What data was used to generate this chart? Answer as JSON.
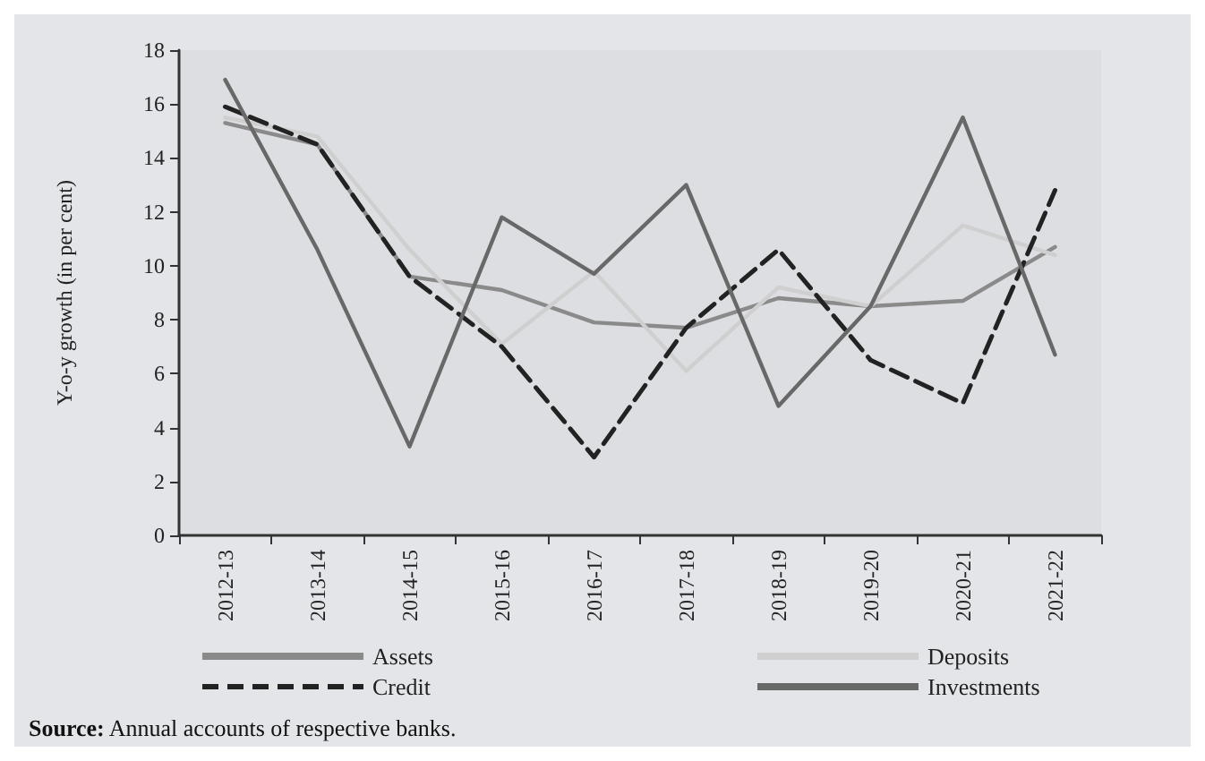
{
  "chart_data": {
    "type": "line",
    "ylabel": "Y-o-y growth (in per cent)",
    "categories": [
      "2012-13",
      "2013-14",
      "2014-15",
      "2015-16",
      "2016-17",
      "2017-18",
      "2018-19",
      "2019-20",
      "2020-21",
      "2021-22"
    ],
    "series": [
      {
        "name": "Assets",
        "color": "#8a8a8a",
        "line_style": "solid",
        "values": [
          15.3,
          14.5,
          9.6,
          9.1,
          7.9,
          7.7,
          8.8,
          8.5,
          8.7,
          10.7
        ]
      },
      {
        "name": "Deposits",
        "color": "#cfcfcf",
        "line_style": "solid",
        "values": [
          15.5,
          14.8,
          10.6,
          7.1,
          9.8,
          6.1,
          9.2,
          8.5,
          11.5,
          10.4
        ]
      },
      {
        "name": "Credit",
        "color": "#222222",
        "line_style": "dashed",
        "values": [
          15.9,
          14.5,
          9.6,
          7.0,
          2.9,
          7.7,
          10.6,
          6.5,
          4.9,
          12.8
        ]
      },
      {
        "name": "Investments",
        "color": "#686868",
        "line_style": "solid",
        "values": [
          16.9,
          10.6,
          3.3,
          11.8,
          9.7,
          13.0,
          4.8,
          8.5,
          15.5,
          6.7
        ]
      }
    ],
    "ylim": [
      0,
      18
    ],
    "yticks": [
      0,
      2,
      4,
      6,
      8,
      10,
      12,
      14,
      16,
      18
    ],
    "grid": false,
    "marker": "none",
    "legend": "bottom",
    "annotations": [
      "Source: Annual accounts of respective banks."
    ]
  }
}
